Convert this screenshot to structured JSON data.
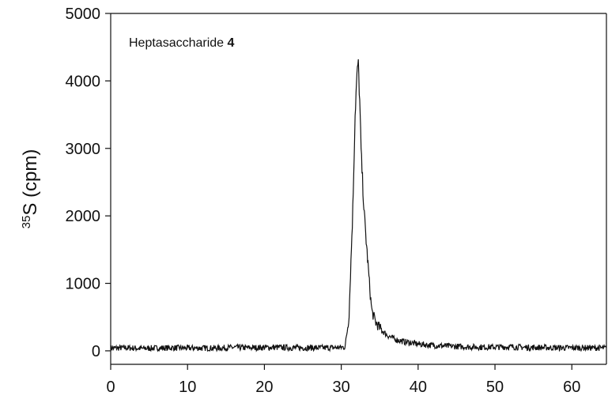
{
  "chart_data": {
    "type": "line",
    "title": "",
    "xlabel": "",
    "ylabel_sup": "35",
    "ylabel_main": "S (cpm)",
    "annotation": {
      "text": "Heptasaccharide ",
      "bold": "4"
    },
    "xlim": [
      0,
      64.5
    ],
    "ylim": [
      -200,
      5000
    ],
    "xticks": [
      0,
      10,
      20,
      30,
      40,
      50,
      60
    ],
    "yticks": [
      0,
      1000,
      2000,
      3000,
      4000,
      5000
    ],
    "xtick_labels": [
      "0",
      "10",
      "20",
      "30",
      "40",
      "50",
      "60"
    ],
    "ytick_labels": [
      "0",
      "1000",
      "2000",
      "3000",
      "4000",
      "5000"
    ],
    "grid": false,
    "line_color": "#111111",
    "series": [
      {
        "x": [
          0,
          2,
          4,
          6,
          8,
          10,
          12,
          14,
          16,
          18,
          20,
          22,
          24,
          26,
          28,
          30,
          30.5,
          31,
          31.5,
          31.8,
          32.0,
          32.2,
          32.4,
          32.6,
          32.8,
          33.0,
          33.2,
          33.5,
          33.8,
          34.0,
          34.5,
          35,
          35.5,
          36,
          37,
          38,
          39,
          40,
          41,
          42,
          44,
          46,
          48,
          50,
          52,
          54,
          56,
          58,
          60,
          62,
          64.5
        ],
        "y": [
          40,
          45,
          35,
          40,
          45,
          40,
          40,
          40,
          50,
          45,
          50,
          50,
          45,
          45,
          45,
          50,
          60,
          500,
          2100,
          3500,
          4000,
          4300,
          3700,
          2900,
          2450,
          2000,
          1700,
          1250,
          800,
          580,
          420,
          340,
          280,
          230,
          170,
          140,
          120,
          100,
          90,
          80,
          70,
          60,
          55,
          55,
          60,
          50,
          50,
          45,
          45,
          45,
          40
        ]
      }
    ]
  }
}
